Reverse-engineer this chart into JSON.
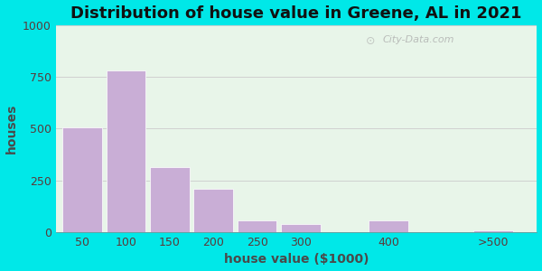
{
  "title": "Distribution of house value in Greene, AL in 2021",
  "xlabel": "house value ($1000)",
  "ylabel": "houses",
  "bar_labels": [
    "50",
    "100",
    "150",
    "200",
    "250",
    "300",
    "400",
    ">500"
  ],
  "bar_values": [
    505,
    780,
    315,
    210,
    55,
    40,
    55,
    8
  ],
  "bar_positions": [
    50,
    100,
    150,
    200,
    250,
    300,
    400,
    520
  ],
  "bar_widths": [
    45,
    45,
    45,
    45,
    45,
    45,
    45,
    45
  ],
  "bar_color": "#c9aed6",
  "bar_edge_color": "#ffffff",
  "xtick_positions": [
    50,
    100,
    150,
    200,
    250,
    300,
    400,
    520
  ],
  "yticks": [
    0,
    250,
    500,
    750,
    1000
  ],
  "ylim": [
    0,
    1000
  ],
  "xlim": [
    20,
    570
  ],
  "title_fontsize": 13,
  "label_fontsize": 10,
  "tick_fontsize": 9,
  "plot_bg": "#e8f5e9",
  "outer_bg": "#00e8e8",
  "watermark": "City-Data.com",
  "grid_color": "#d0d0d0"
}
